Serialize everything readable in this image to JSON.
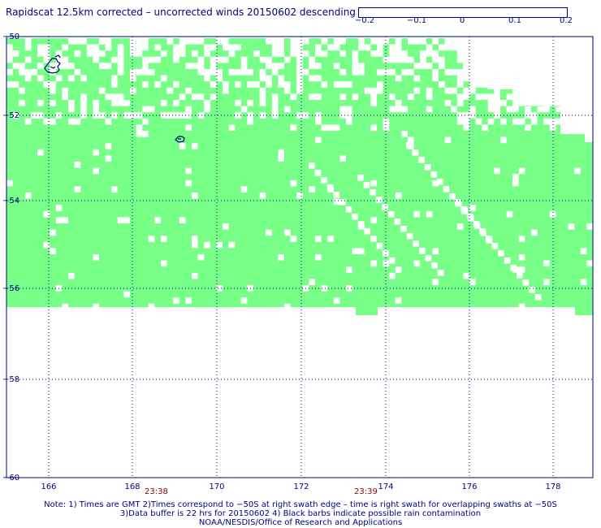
{
  "title": "Rapidscat 12.5km corrected – uncorrected winds 20150602 descending",
  "colorbar": {
    "ticks": [
      "−0.2",
      "−0.1",
      "0",
      "0.1",
      "0.2"
    ],
    "colors": [
      "#0000a0",
      "#0000ff",
      "#00a0ff",
      "#00ffff",
      "#80ff80",
      "#ffff00",
      "#ffa000",
      "#ff2000",
      "#a00000"
    ]
  },
  "map": {
    "lat_labels": [
      "−50",
      "−52",
      "−54",
      "−56",
      "−58",
      "−60"
    ],
    "lon_labels": [
      "166",
      "168",
      "170",
      "172",
      "174",
      "176",
      "178"
    ],
    "fill_color": "#78ff88",
    "coast_color": "#000080",
    "time_labels": [
      "23:38",
      "23:39"
    ]
  },
  "notes": [
    "Note: 1) Times are GMT 2)Times correspond to −50S at right swath edge – time is right swath for overlapping swaths at −50S",
    "3)Data buffer is 22 hrs for 20150602 4) Black barbs indicate possible rain contamination",
    "NOAA/NESDIS/Office of Research and Applications"
  ]
}
